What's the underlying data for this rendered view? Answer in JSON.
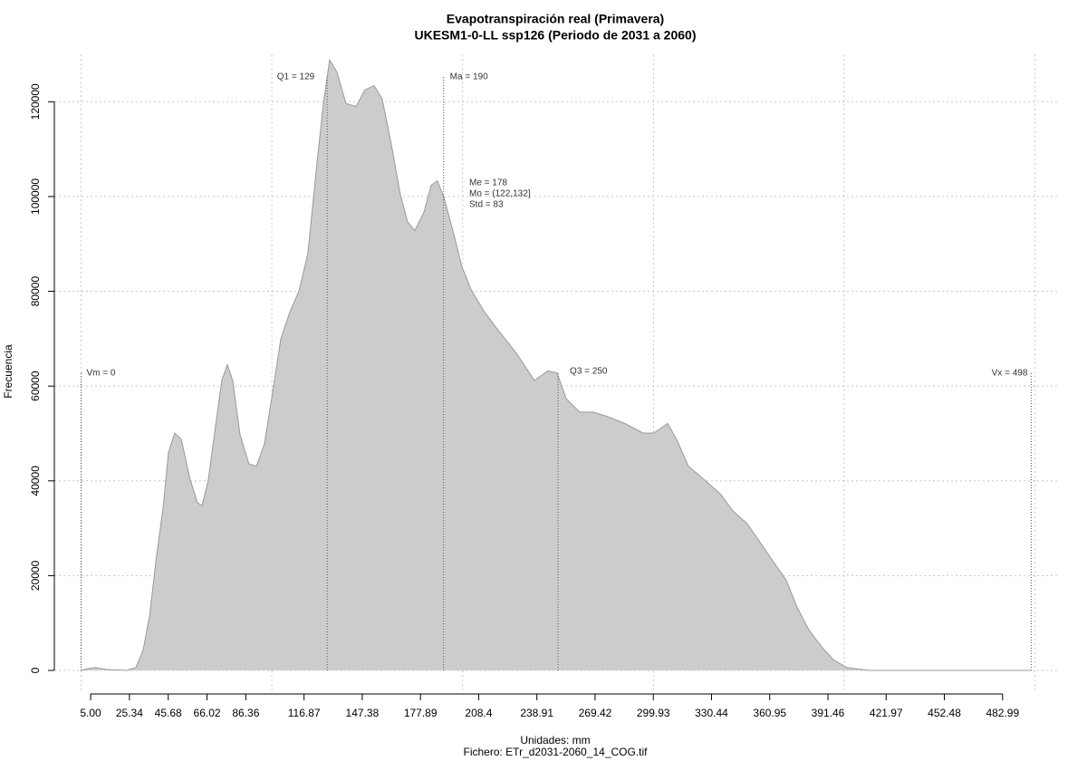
{
  "chart_data": {
    "type": "area",
    "title": "Evapotranspiración real (Primavera)",
    "subtitle": "UKESM1-0-LL ssp126 (Periodo de 2031 a 2060)",
    "x_label": "Unidades: mm",
    "x_label_2": "Fichero: ETr_d2031-2060_14_COG.tif",
    "y_label": "Frecuencia",
    "color": "#cccccc",
    "line_color": "#999999",
    "x": [
      0.3,
      2.6,
      7.4,
      13.6,
      24,
      28.7,
      32.5,
      35.9,
      39.2,
      43,
      45.8,
      49.1,
      52.5,
      57.2,
      61,
      63.4,
      66.7,
      70.5,
      73.8,
      76.7,
      79.5,
      83.3,
      88,
      91.9,
      96.1,
      99.9,
      104.7,
      109.4,
      114.2,
      118.9,
      123.7,
      127,
      130.3,
      134.1,
      138.9,
      144.1,
      148.8,
      153.6,
      157.8,
      162.6,
      167.3,
      171.1,
      174.9,
      179.7,
      183.5,
      186.8,
      190.1,
      194.9,
      199.6,
      204.4,
      211.5,
      218.6,
      228.1,
      237.6,
      244.7,
      249.5,
      254.2,
      261.3,
      268.4,
      275.6,
      285.1,
      294.5,
      300.2,
      307.4,
      312.1,
      318.3,
      326.8,
      334.9,
      342,
      349.1,
      356.3,
      363.4,
      369.5,
      375.2,
      381.4,
      388.5,
      394.2,
      401.4,
      413,
      432,
      470,
      498
    ],
    "values": [
      0,
      300,
      600,
      200,
      0,
      600,
      4200,
      11500,
      23000,
      34400,
      46000,
      50100,
      48800,
      40200,
      35400,
      34800,
      40200,
      51700,
      61200,
      64500,
      61200,
      49800,
      43600,
      43100,
      47800,
      57400,
      69900,
      75600,
      80000,
      88000,
      107200,
      119600,
      128800,
      126300,
      119600,
      119000,
      122500,
      123400,
      120600,
      111000,
      100500,
      94700,
      92800,
      96700,
      102400,
      103300,
      99900,
      92800,
      85200,
      80400,
      75600,
      71800,
      67000,
      61200,
      63200,
      62800,
      57400,
      54500,
      54500,
      53600,
      52100,
      50100,
      50100,
      52100,
      48800,
      43100,
      40200,
      37300,
      33500,
      31000,
      26800,
      22600,
      19100,
      13400,
      8600,
      4800,
      2300,
      600,
      0,
      0,
      0,
      0
    ],
    "xlim": [
      -14,
      513
    ],
    "ylim": [
      -4200,
      130000
    ],
    "xticks": [
      {
        "value": 5,
        "label": "5.00"
      },
      25.34,
      45.68,
      66.02,
      86.36,
      116.87,
      147.38,
      177.89,
      208.4,
      238.91,
      269.42,
      299.93,
      330.44,
      360.95,
      391.46,
      421.97,
      452.48,
      482.99
    ],
    "yticks": [
      0,
      20000,
      40000,
      60000,
      80000,
      100000,
      120000
    ],
    "xgrid": [
      0,
      100,
      200,
      300,
      400,
      500
    ],
    "grid": true,
    "annotations": [
      {
        "label": "Vm = 0",
        "x": 0
      },
      {
        "label": "Q1 = 129",
        "x": 129
      },
      {
        "label": "Ma = 190",
        "x": 190
      },
      {
        "label": "Q3 = 250",
        "x": 250
      },
      {
        "label": "Vx = 498",
        "x": 498
      }
    ],
    "stats": [
      "Me = 178",
      "Mo = (122,132]",
      "Std = 83"
    ]
  }
}
